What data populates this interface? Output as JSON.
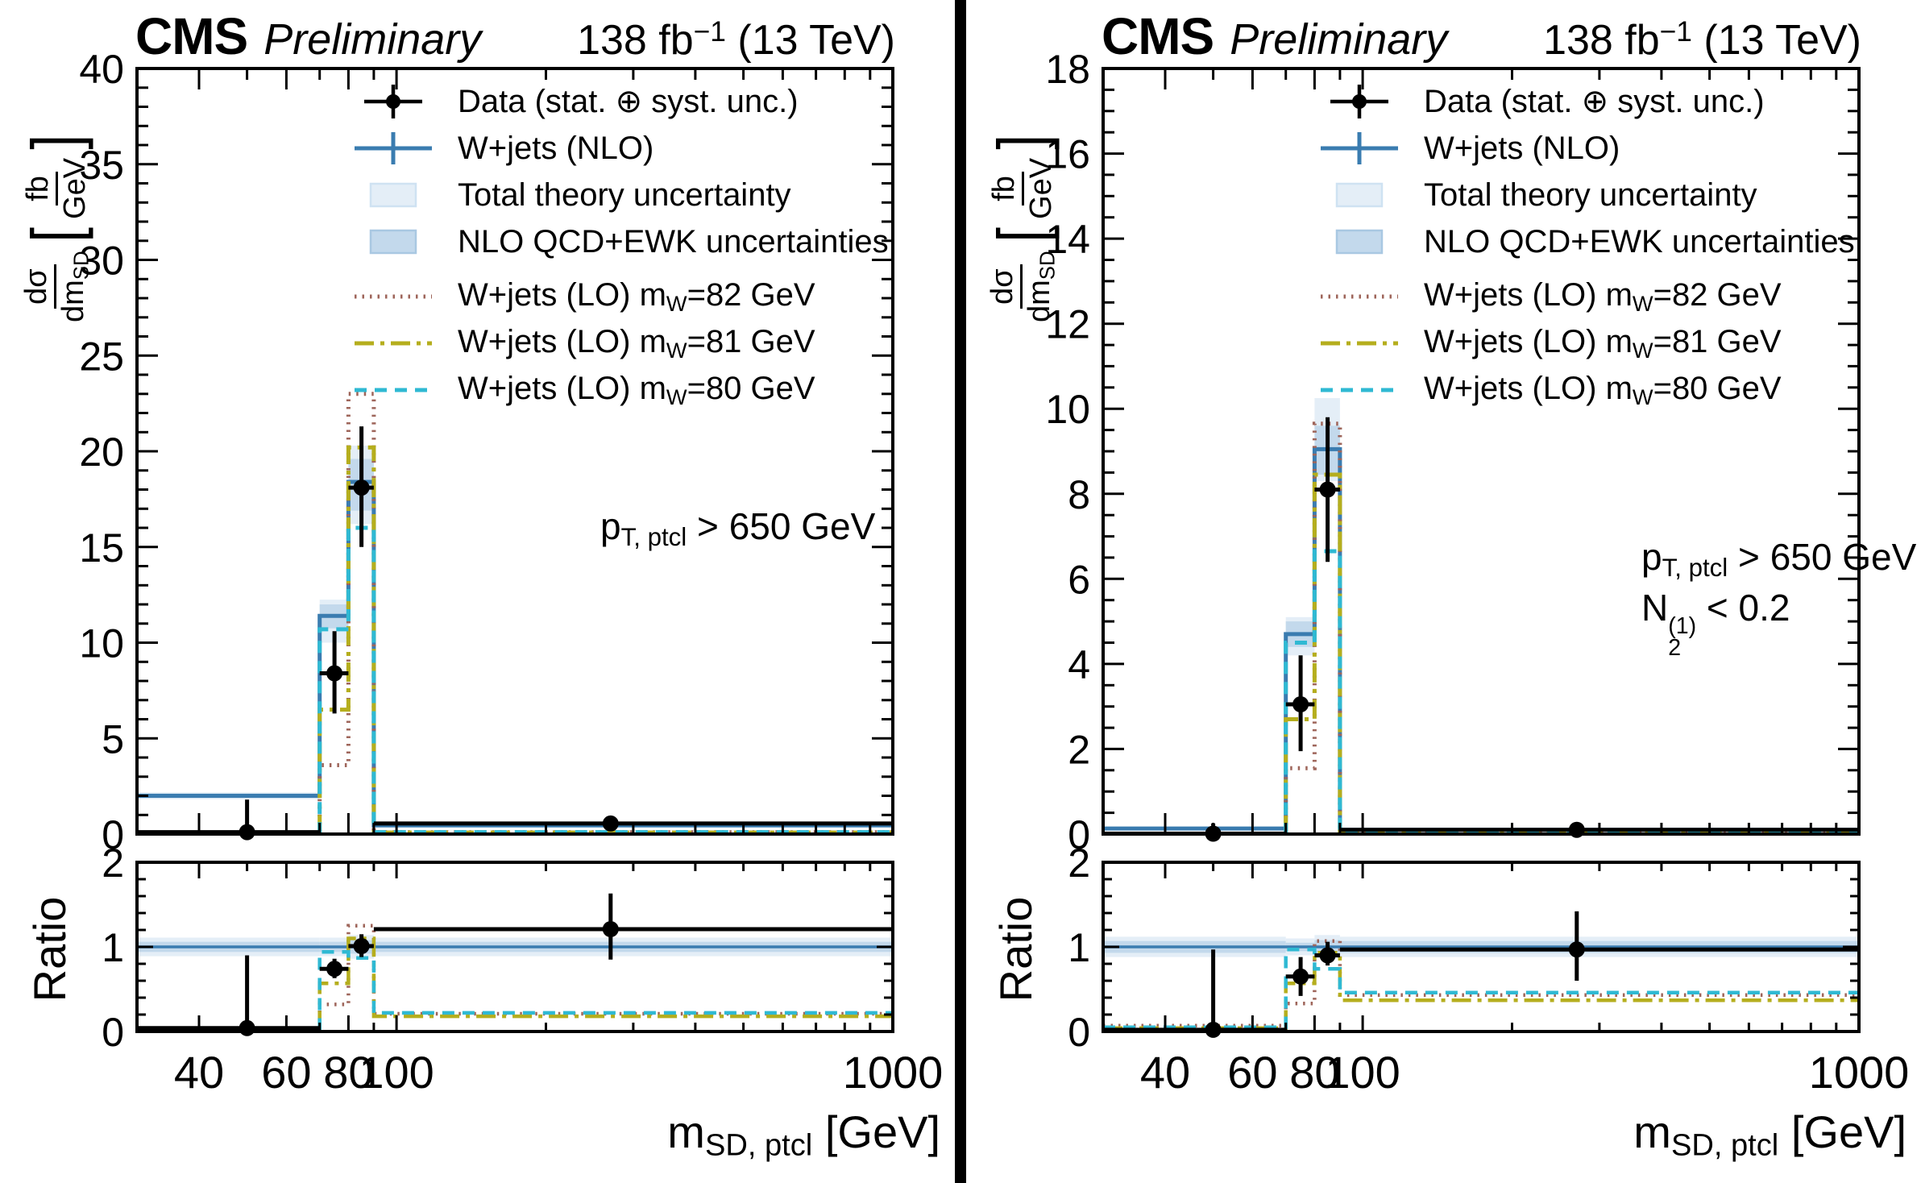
{
  "colors": {
    "nlo": "#3a7cb0",
    "band_light": "#e4eef7",
    "band_light_edge": "#cfe2f2",
    "band_dark": "#c3d9ec",
    "band_dark_edge": "#a9c8e2",
    "lo_mw82": "#9e655a",
    "lo_mw81": "#b5ae1d",
    "lo_mw80": "#2fb9d3",
    "data": "#000000",
    "frame": "#000000"
  },
  "chart_data": [
    {
      "type": "histogram-with-ratio",
      "header": {
        "experiment": "CMS",
        "label": "Preliminary",
        "lumi": "138 fb^{−1} (13 TeV)"
      },
      "legend": [
        {
          "marker": "data",
          "label": "Data (stat. ⊕ syst. unc.)"
        },
        {
          "marker": "nlo",
          "label": "W+jets (NLO)"
        },
        {
          "marker": "band_light",
          "label": "Total theory uncertainty"
        },
        {
          "marker": "band_dark",
          "label": "NLO QCD+EWK uncertainties"
        },
        {
          "marker": "lo_mw82",
          "label": "W+jets (LO) m_{W}=82 GeV"
        },
        {
          "marker": "lo_mw81",
          "label": "W+jets (LO) m_{W}=81 GeV"
        },
        {
          "marker": "lo_mw80",
          "label": "W+jets (LO) m_{W}=80 GeV"
        }
      ],
      "annotation": [
        "p_{T, ptcl} > 650 GeV"
      ],
      "x": {
        "scale": "log",
        "min": 30,
        "max": 1000,
        "tick_values": [
          30,
          40,
          50,
          60,
          70,
          80,
          90,
          100,
          200,
          300,
          400,
          500,
          600,
          700,
          800,
          900,
          1000
        ],
        "labeled_ticks": [
          40,
          60,
          80,
          100,
          1000
        ],
        "label": "m_{SD, ptcl} [GeV]"
      },
      "bins": [
        30,
        70,
        80,
        90,
        1000
      ],
      "main": {
        "ylabel": {
          "num": "dσ",
          "den": "dm_{SD}",
          "unit_num": "fb",
          "unit_den": "GeV"
        },
        "ymin": 0,
        "ymax": 40,
        "ytick_step": 5,
        "yminor_step": 1,
        "band_outer": [
          [
            1.82,
            2.18
          ],
          [
            10.0,
            12.25
          ],
          [
            16.2,
            20.3
          ],
          [
            0.4,
            0.52
          ]
        ],
        "band_inner": [
          [
            1.88,
            2.12
          ],
          [
            10.75,
            12.0
          ],
          [
            16.9,
            19.6
          ],
          [
            0.42,
            0.5
          ]
        ],
        "nlo": [
          2.0,
          11.4,
          18.4,
          0.45
        ],
        "lo_mw82": [
          0.06,
          3.6,
          23.0,
          0.095
        ],
        "lo_mw81": [
          0.06,
          6.5,
          20.2,
          0.082
        ],
        "lo_mw80": [
          0.06,
          10.7,
          16.0,
          0.1
        ],
        "data": {
          "x": [
            50,
            75,
            85,
            270
          ],
          "y": [
            0.1,
            8.4,
            18.1,
            0.55
          ],
          "y_lo": [
            0.0,
            6.3,
            15.0,
            0.44
          ],
          "y_hi": [
            1.8,
            10.6,
            21.3,
            0.66
          ]
        }
      },
      "ratio": {
        "ylabel": "Ratio",
        "ymin": 0,
        "ymax": 2,
        "ytick_step": 1,
        "yminor_step": 0.2,
        "band_outer": [
          [
            0.89,
            1.11
          ],
          [
            0.89,
            1.11
          ],
          [
            0.86,
            1.14
          ],
          [
            0.89,
            1.11
          ]
        ],
        "band_inner": [
          [
            0.94,
            1.06
          ],
          [
            0.94,
            1.06
          ],
          [
            0.92,
            1.08
          ],
          [
            0.94,
            1.06
          ]
        ],
        "nlo": [
          1.0,
          1.0,
          1.0,
          1.0
        ],
        "lo_mw82": [
          0.03,
          0.32,
          1.25,
          0.21
        ],
        "lo_mw81": [
          0.03,
          0.57,
          1.1,
          0.18
        ],
        "lo_mw80": [
          0.03,
          0.94,
          0.87,
          0.22
        ],
        "data": {
          "x": [
            50,
            75,
            85,
            270
          ],
          "y": [
            0.04,
            0.74,
            1.01,
            1.21
          ],
          "y_lo": [
            0.0,
            0.63,
            0.88,
            0.85
          ],
          "y_hi": [
            0.9,
            0.86,
            1.15,
            1.63
          ]
        }
      }
    },
    {
      "type": "histogram-with-ratio",
      "header": {
        "experiment": "CMS",
        "label": "Preliminary",
        "lumi": "138 fb^{−1} (13 TeV)"
      },
      "legend": [
        {
          "marker": "data",
          "label": "Data (stat. ⊕ syst. unc.)"
        },
        {
          "marker": "nlo",
          "label": "W+jets (NLO)"
        },
        {
          "marker": "band_light",
          "label": "Total theory uncertainty"
        },
        {
          "marker": "band_dark",
          "label": "NLO QCD+EWK uncertainties"
        },
        {
          "marker": "lo_mw82",
          "label": "W+jets (LO) m_{W}=82 GeV"
        },
        {
          "marker": "lo_mw81",
          "label": "W+jets (LO) m_{W}=81 GeV"
        },
        {
          "marker": "lo_mw80",
          "label": "W+jets (LO) m_{W}=80 GeV"
        }
      ],
      "annotation": [
        "p_{T, ptcl} > 650 GeV",
        "N_{2}^{(1)} < 0.2"
      ],
      "x": {
        "scale": "log",
        "min": 30,
        "max": 1000,
        "tick_values": [
          30,
          40,
          50,
          60,
          70,
          80,
          90,
          100,
          200,
          300,
          400,
          500,
          600,
          700,
          800,
          900,
          1000
        ],
        "labeled_ticks": [
          40,
          60,
          80,
          100,
          1000
        ],
        "label": "m_{SD, ptcl} [GeV]"
      },
      "bins": [
        30,
        70,
        80,
        90,
        1000
      ],
      "main": {
        "ylabel": {
          "num": "dσ",
          "den": "dm_{SD}",
          "unit_num": "fb",
          "unit_den": "GeV"
        },
        "ymin": 0,
        "ymax": 18,
        "ytick_step": 2,
        "yminor_step": 0.5,
        "band_outer": [
          [
            0.11,
            0.15
          ],
          [
            4.2,
            5.1
          ],
          [
            8.3,
            10.25
          ],
          [
            0.08,
            0.12
          ]
        ],
        "band_inner": [
          [
            0.12,
            0.14
          ],
          [
            4.4,
            5.0
          ],
          [
            8.45,
            9.6
          ],
          [
            0.09,
            0.11
          ]
        ],
        "nlo": [
          0.13,
          4.7,
          9.05,
          0.1
        ],
        "lo_mw82": [
          0.01,
          1.55,
          9.65,
          0.043
        ],
        "lo_mw81": [
          0.01,
          2.7,
          8.45,
          0.037
        ],
        "lo_mw80": [
          0.01,
          4.5,
          6.65,
          0.046
        ],
        "data": {
          "x": [
            50,
            75,
            85,
            270
          ],
          "y": [
            0.01,
            3.05,
            8.1,
            0.1
          ],
          "y_lo": [
            0.0,
            1.95,
            6.4,
            0.06
          ],
          "y_hi": [
            0.25,
            4.2,
            9.8,
            0.14
          ]
        }
      },
      "ratio": {
        "ylabel": "Ratio",
        "ymin": 0,
        "ymax": 2,
        "ytick_step": 1,
        "yminor_step": 0.2,
        "band_outer": [
          [
            0.88,
            1.12
          ],
          [
            0.9,
            1.1
          ],
          [
            0.86,
            1.14
          ],
          [
            0.88,
            1.12
          ]
        ],
        "band_inner": [
          [
            0.93,
            1.07
          ],
          [
            0.95,
            1.05
          ],
          [
            0.92,
            1.08
          ],
          [
            0.93,
            1.07
          ]
        ],
        "nlo": [
          1.0,
          1.0,
          1.0,
          1.0
        ],
        "lo_mw82": [
          0.07,
          0.33,
          1.07,
          0.43
        ],
        "lo_mw81": [
          0.04,
          0.57,
          0.93,
          0.37
        ],
        "lo_mw80": [
          0.05,
          0.97,
          0.74,
          0.46
        ],
        "data": {
          "x": [
            50,
            75,
            85,
            270
          ],
          "y": [
            0.02,
            0.65,
            0.9,
            0.97
          ],
          "y_lo": [
            0.0,
            0.42,
            0.78,
            0.6
          ],
          "y_hi": [
            0.97,
            0.88,
            1.06,
            1.42
          ]
        }
      }
    }
  ]
}
